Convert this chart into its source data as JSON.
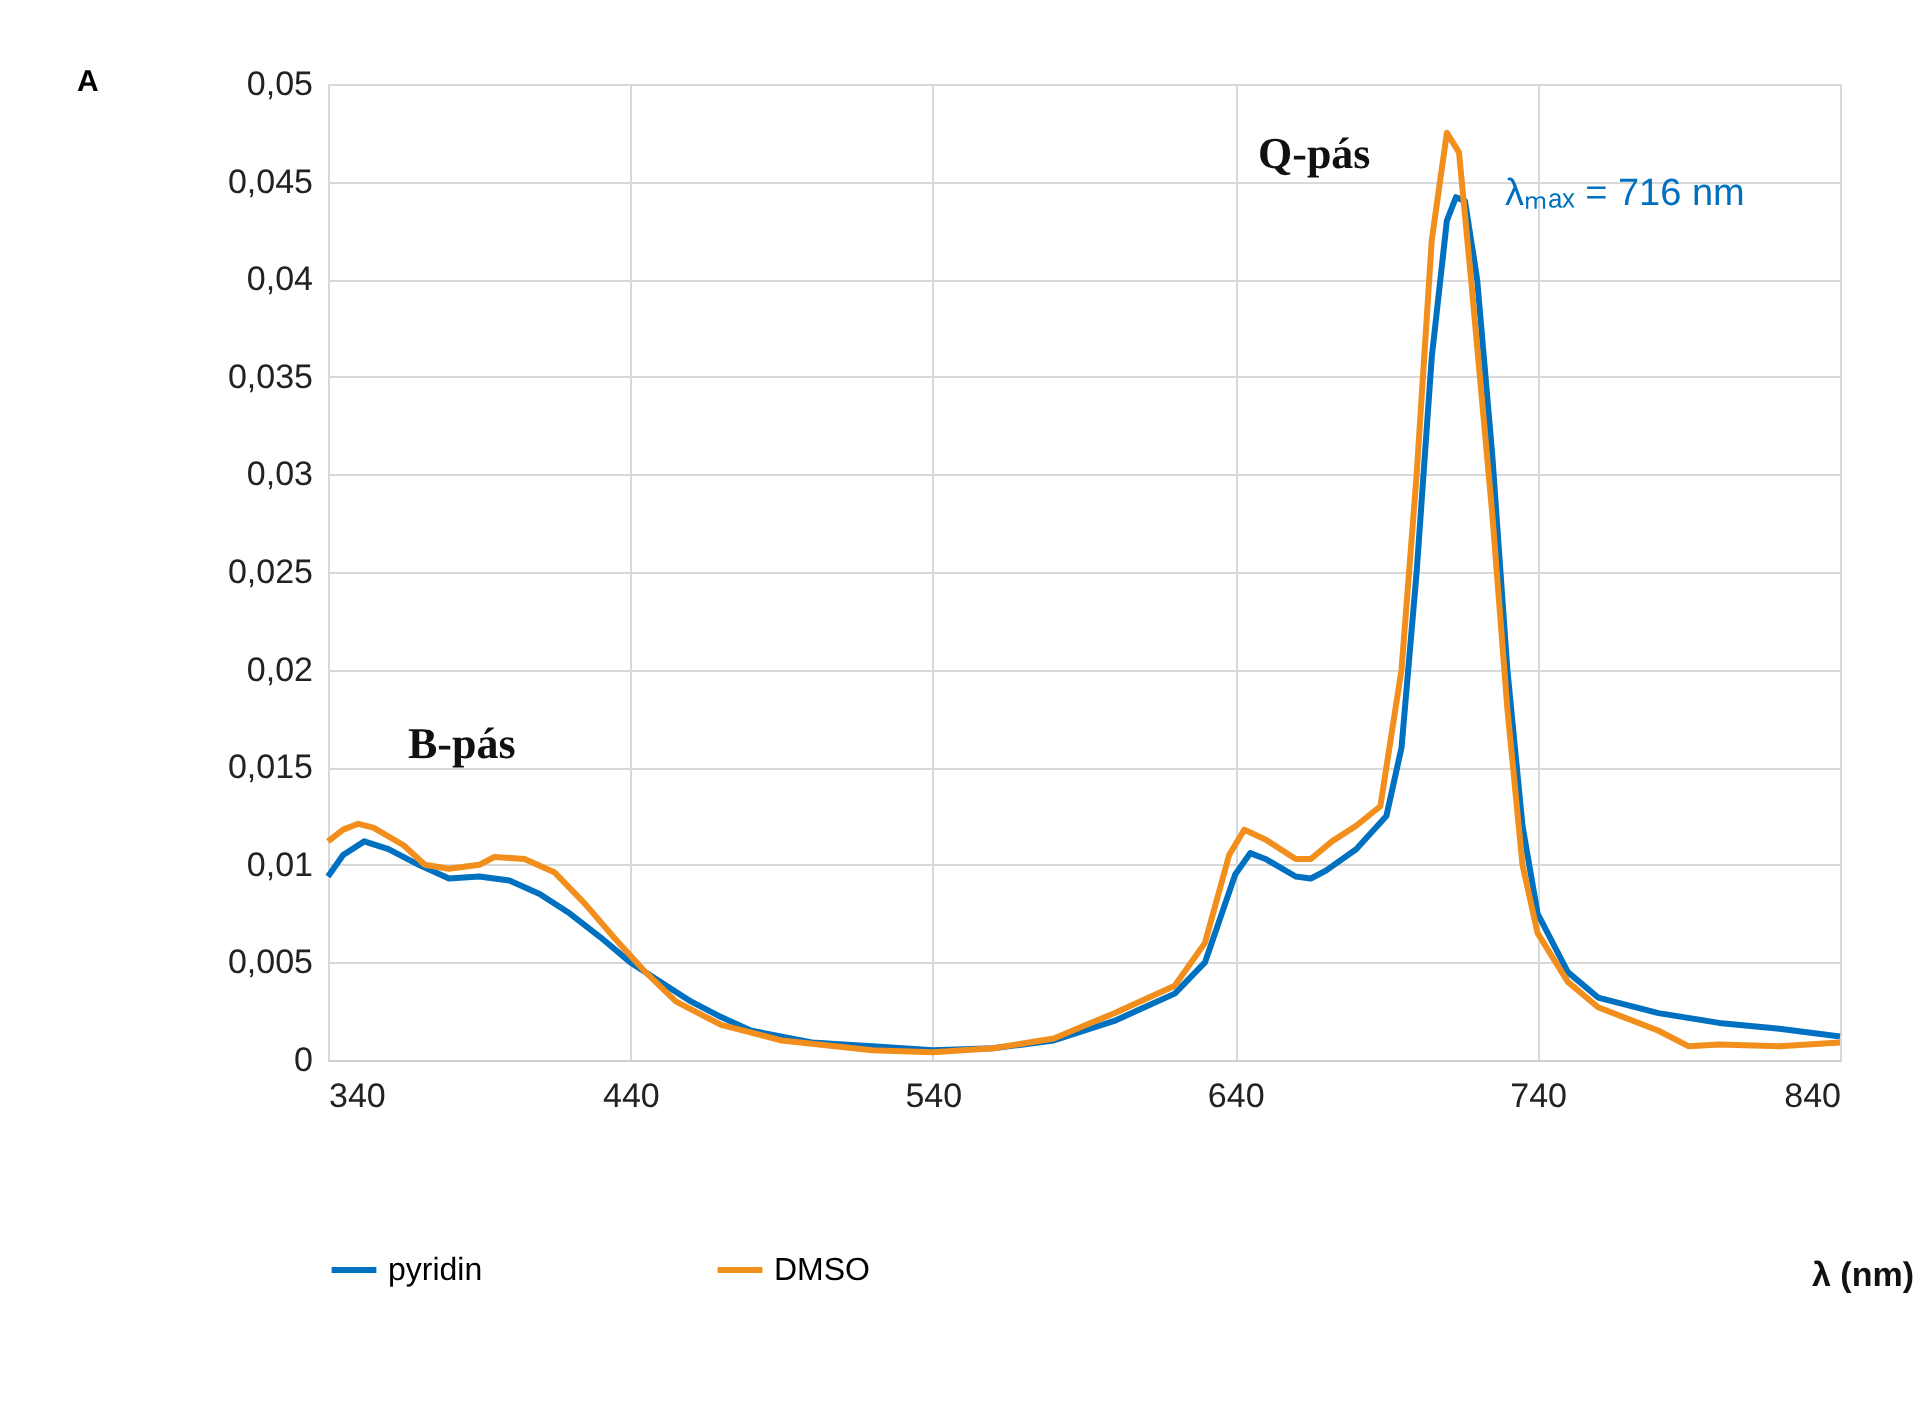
{
  "chart_data": {
    "type": "line",
    "ylabel": "A",
    "xlim": [
      340,
      840
    ],
    "xticks": [
      340,
      440,
      540,
      640,
      740,
      840
    ],
    "ylim": [
      0,
      0.05
    ],
    "yticks": [
      {
        "value": 0,
        "label": "0"
      },
      {
        "value": 0.005,
        "label": "0,005"
      },
      {
        "value": 0.01,
        "label": "0,01"
      },
      {
        "value": 0.015,
        "label": "0,015"
      },
      {
        "value": 0.02,
        "label": "0,02"
      },
      {
        "value": 0.025,
        "label": "0,025"
      },
      {
        "value": 0.03,
        "label": "0,03"
      },
      {
        "value": 0.035,
        "label": "0,035"
      },
      {
        "value": 0.04,
        "label": "0,04"
      },
      {
        "value": 0.045,
        "label": "0,045"
      },
      {
        "value": 0.05,
        "label": "0,05"
      }
    ],
    "grid": true,
    "legend": "bottom",
    "marker": "none",
    "line_style": "solid",
    "series": [
      {
        "name": "pyridin",
        "color": "#0070c0",
        "x": [
          340,
          345,
          352,
          360,
          370,
          380,
          390,
          400,
          410,
          420,
          430,
          440,
          450,
          460,
          470,
          480,
          500,
          520,
          540,
          560,
          580,
          600,
          610,
          620,
          630,
          640,
          645,
          650,
          660,
          665,
          670,
          680,
          690,
          695,
          700,
          705,
          710,
          713,
          716,
          720,
          725,
          730,
          735,
          740,
          750,
          760,
          780,
          800,
          820,
          840
        ],
        "values": [
          0.0094,
          0.0105,
          0.0112,
          0.0108,
          0.01,
          0.0093,
          0.0094,
          0.0092,
          0.0085,
          0.0075,
          0.0063,
          0.005,
          0.004,
          0.003,
          0.0022,
          0.0015,
          0.0009,
          0.0007,
          0.0005,
          0.0006,
          0.001,
          0.002,
          0.0027,
          0.0034,
          0.005,
          0.0095,
          0.0106,
          0.0103,
          0.0094,
          0.0093,
          0.0097,
          0.0108,
          0.0125,
          0.016,
          0.025,
          0.036,
          0.043,
          0.0442,
          0.044,
          0.04,
          0.031,
          0.02,
          0.012,
          0.0075,
          0.0045,
          0.0032,
          0.0024,
          0.0019,
          0.0016,
          0.0012
        ]
      },
      {
        "name": "DMSO",
        "color": "#f28e1c",
        "x": [
          340,
          345,
          350,
          355,
          365,
          372,
          380,
          390,
          395,
          405,
          415,
          425,
          435,
          445,
          455,
          470,
          490,
          520,
          540,
          560,
          580,
          600,
          620,
          630,
          638,
          643,
          650,
          660,
          665,
          672,
          680,
          688,
          695,
          700,
          705,
          710,
          714,
          718,
          725,
          730,
          735,
          740,
          750,
          760,
          780,
          790,
          800,
          820,
          840
        ],
        "values": [
          0.0112,
          0.0118,
          0.0121,
          0.0119,
          0.011,
          0.01,
          0.0098,
          0.01,
          0.0104,
          0.0103,
          0.0096,
          0.008,
          0.0062,
          0.0045,
          0.003,
          0.0018,
          0.001,
          0.0005,
          0.0004,
          0.0006,
          0.0011,
          0.0024,
          0.0038,
          0.006,
          0.0105,
          0.0118,
          0.0113,
          0.0103,
          0.0103,
          0.0112,
          0.012,
          0.013,
          0.02,
          0.03,
          0.042,
          0.0475,
          0.0465,
          0.04,
          0.028,
          0.018,
          0.01,
          0.0065,
          0.004,
          0.0027,
          0.0015,
          0.0007,
          0.0008,
          0.0007,
          0.0009
        ]
      }
    ],
    "annotations": [
      "B-pás",
      "Q-pás",
      {
        "text": "λₘₐₓ = 716 nm",
        "x": 716,
        "y": 0.044
      },
      "λ (nm)"
    ]
  }
}
